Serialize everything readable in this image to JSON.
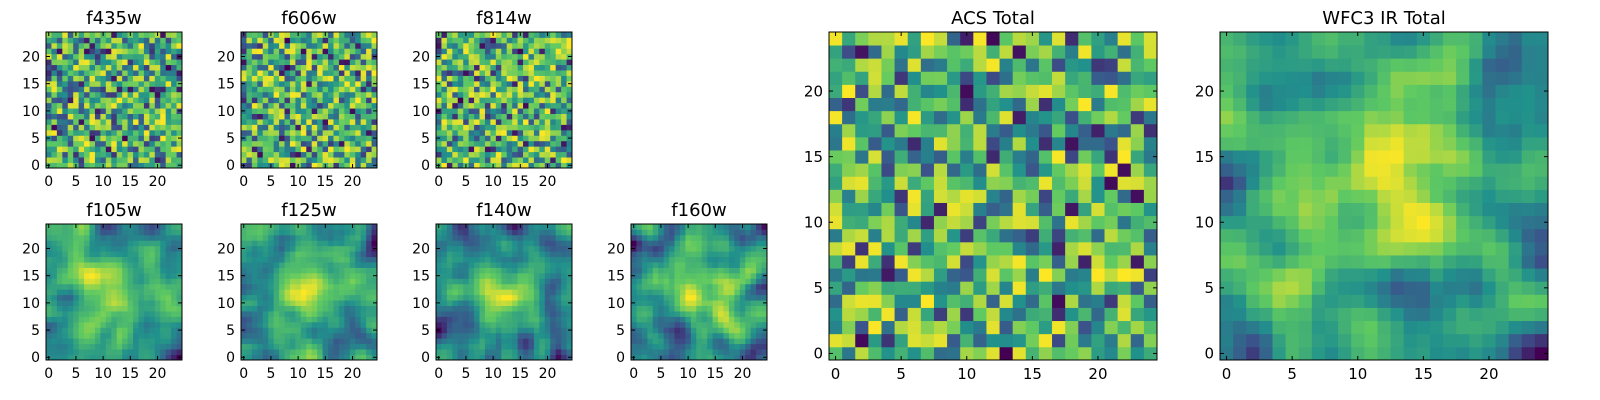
{
  "colormap": [
    "#440154",
    "#3b528b",
    "#21918c",
    "#5ec962",
    "#fde725"
  ],
  "chart_data": [
    {
      "type": "heatmap",
      "title": "f435w",
      "size": 25,
      "vlim": [
        0,
        1
      ],
      "xticks": [
        0,
        5,
        10,
        15,
        20
      ],
      "yticks": [
        0,
        5,
        10,
        15,
        20
      ],
      "pattern": "noise",
      "seed": 11
    },
    {
      "type": "heatmap",
      "title": "f606w",
      "size": 25,
      "vlim": [
        0,
        1
      ],
      "xticks": [
        0,
        5,
        10,
        15,
        20
      ],
      "yticks": [
        0,
        5,
        10,
        15,
        20
      ],
      "pattern": "noise",
      "seed": 23
    },
    {
      "type": "heatmap",
      "title": "f814w",
      "size": 25,
      "vlim": [
        0,
        1
      ],
      "xticks": [
        0,
        5,
        10,
        15,
        20
      ],
      "yticks": [
        0,
        5,
        10,
        15,
        20
      ],
      "pattern": "noise",
      "seed": 37
    },
    {
      "type": "heatmap",
      "title": "f105w",
      "size": 25,
      "vlim": [
        0,
        1
      ],
      "xticks": [
        0,
        5,
        10,
        15,
        20
      ],
      "yticks": [
        0,
        5,
        10,
        15,
        20
      ],
      "pattern": "smooth",
      "seed": 41
    },
    {
      "type": "heatmap",
      "title": "f125w",
      "size": 25,
      "vlim": [
        0,
        1
      ],
      "xticks": [
        0,
        5,
        10,
        15,
        20
      ],
      "yticks": [
        0,
        5,
        10,
        15,
        20
      ],
      "pattern": "smooth",
      "seed": 53
    },
    {
      "type": "heatmap",
      "title": "f140w",
      "size": 25,
      "vlim": [
        0,
        1
      ],
      "xticks": [
        0,
        5,
        10,
        15,
        20
      ],
      "yticks": [
        0,
        5,
        10,
        15,
        20
      ],
      "pattern": "smooth",
      "seed": 67
    },
    {
      "type": "heatmap",
      "title": "f160w",
      "size": 25,
      "vlim": [
        0,
        1
      ],
      "xticks": [
        0,
        5,
        10,
        15,
        20
      ],
      "yticks": [
        0,
        5,
        10,
        15,
        20
      ],
      "pattern": "smooth",
      "seed": 79
    },
    {
      "type": "heatmap",
      "title": "ACS Total",
      "size": 25,
      "vlim": [
        0,
        1
      ],
      "xticks": [
        0,
        5,
        10,
        15,
        20
      ],
      "yticks": [
        0,
        5,
        10,
        15,
        20
      ],
      "pattern": "noise-soft",
      "seed": 97
    },
    {
      "type": "heatmap",
      "title": "WFC3 IR Total",
      "size": 25,
      "vlim": [
        0,
        1
      ],
      "xticks": [
        0,
        5,
        10,
        15,
        20
      ],
      "yticks": [
        0,
        5,
        10,
        15,
        20
      ],
      "pattern": "smooth-soft",
      "seed": 131
    }
  ]
}
